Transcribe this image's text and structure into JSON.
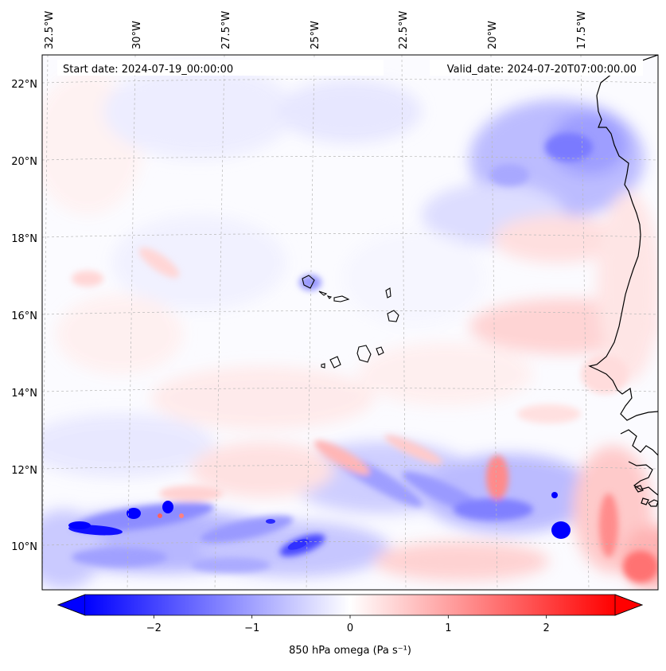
{
  "map": {
    "variable_label": "850 hPa omega (Pa s⁻¹)",
    "start_date": "Start date: 2024-07-19_00:00:00",
    "valid_date": "Valid_date: 2024-07-20T07:00:00.00",
    "extent": {
      "lon_min": -33.0,
      "lon_max": -15.0,
      "lat_min": 8.8,
      "lat_max": 22.8
    },
    "longitude_ticks": [
      "32.5°W",
      "30°W",
      "27.5°W",
      "25°W",
      "22.5°W",
      "20°W",
      "17.5°W"
    ],
    "latitude_ticks": [
      "22°N",
      "20°N",
      "18°N",
      "16°N",
      "14°N",
      "12°N",
      "10°N"
    ],
    "gridlines": true,
    "colormap": "bwr",
    "colors": {
      "negative": "#0000ff",
      "zero": "#ffffff",
      "positive": "#ff0000",
      "coast": "#000000",
      "grid": "#bbbbbb"
    },
    "colorbar": {
      "range": [
        -2.7,
        2.7
      ],
      "tick_values": [
        -2,
        -1,
        0,
        1,
        2
      ],
      "tick_labels": [
        "−2",
        "−1",
        "0",
        "1",
        "2"
      ],
      "extend": "both",
      "orientation": "horizontal"
    },
    "features": [
      {
        "name": "West African coastline",
        "region": "right edge, 14.5°N–22.8°N"
      },
      {
        "name": "Cape Verde islands",
        "region": "centre, ~15°N–17°N, ~25°W–22.5°W"
      },
      {
        "name": "Strong negative omega band",
        "region": "south, ~9.5°N–12°N"
      },
      {
        "name": "Negative omega region",
        "region": "north-east, ~18°N–21°N, ~20°W–16°W"
      }
    ]
  }
}
